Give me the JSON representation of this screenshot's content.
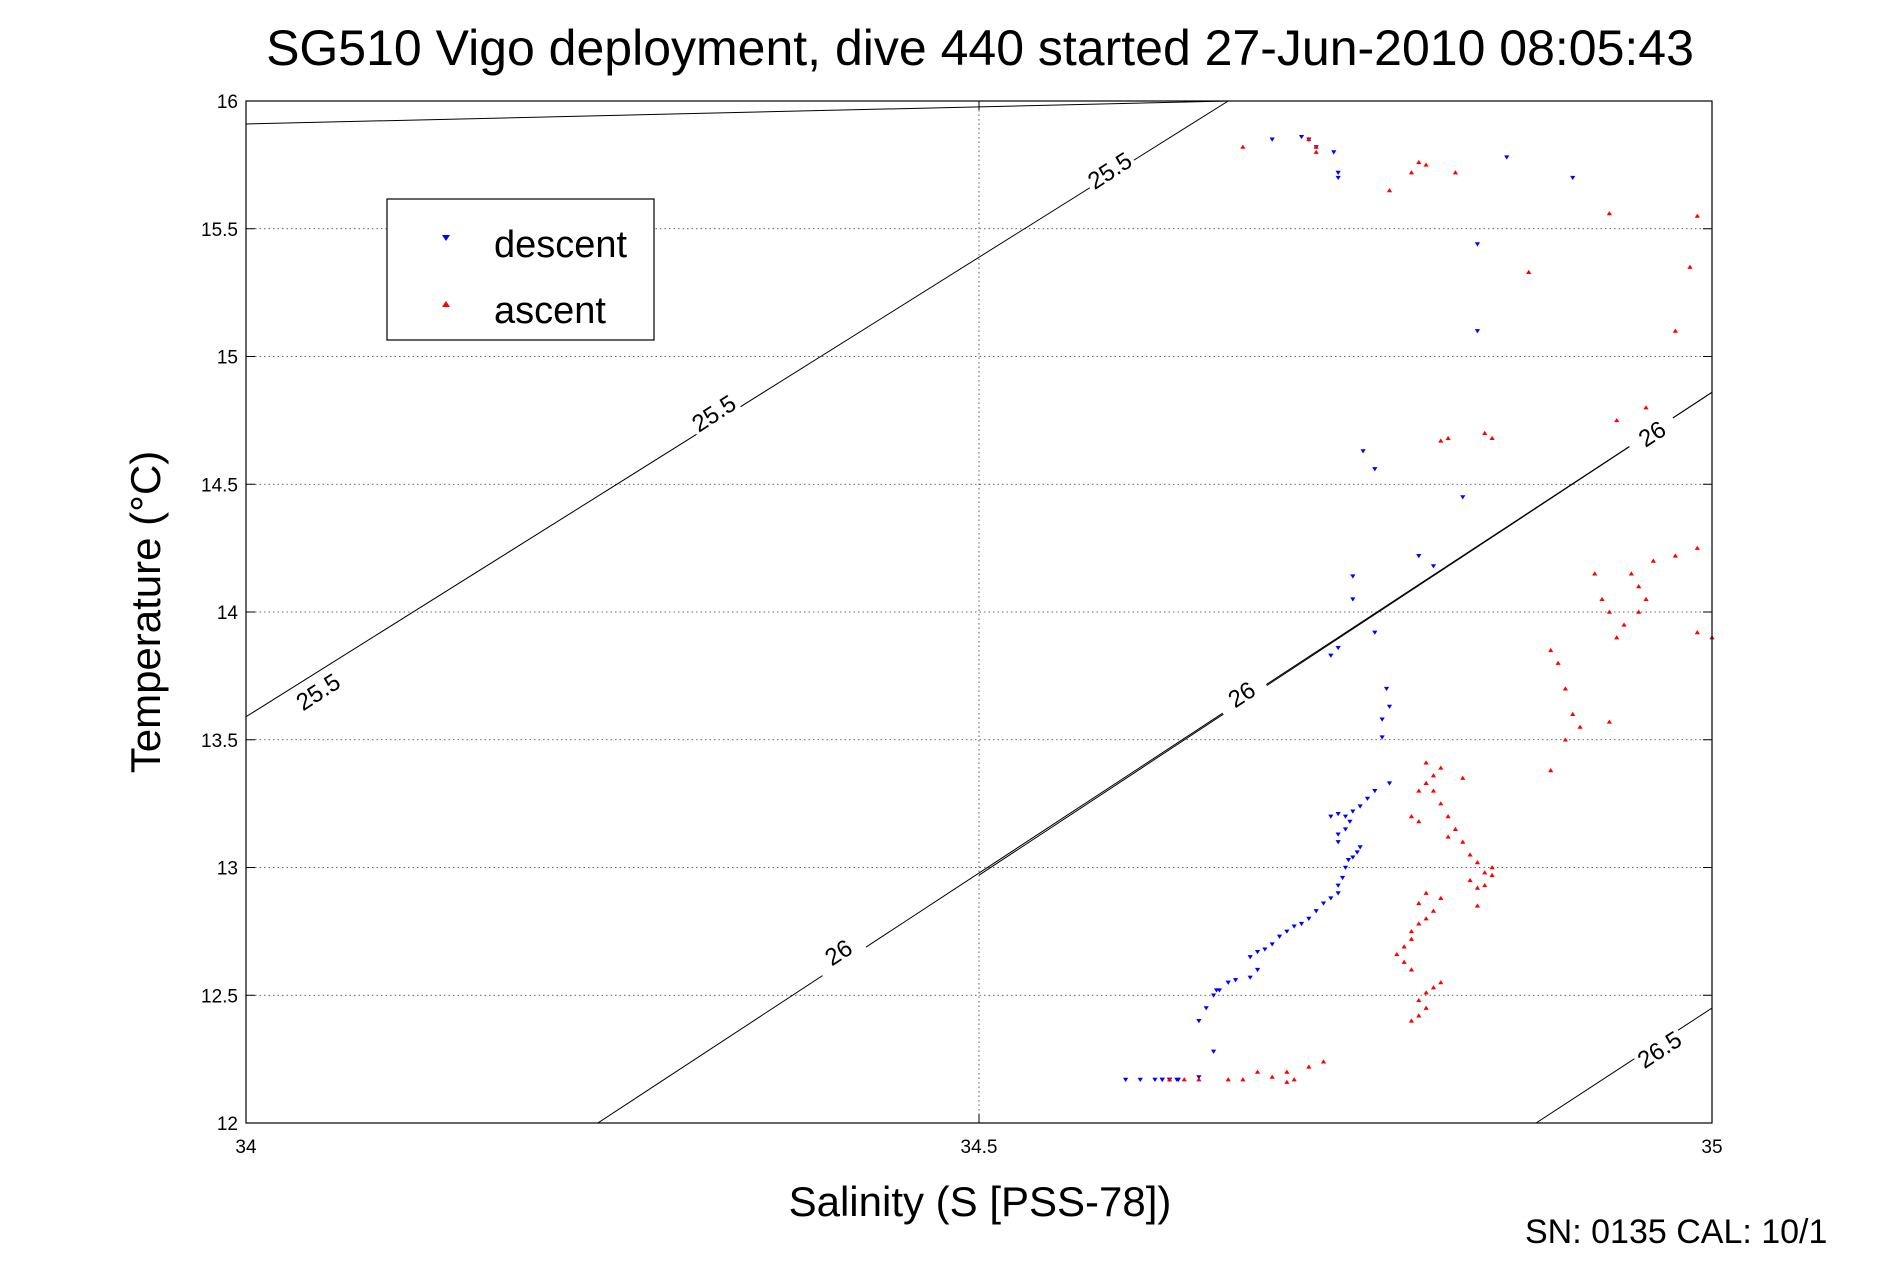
{
  "chart_data": {
    "type": "scatter",
    "title": "SG510 Vigo deployment, dive 440 started 27-Jun-2010 08:05:43",
    "xlabel": "Salinity (S [PSS-78])",
    "ylabel": "Temperature (°C)",
    "xlim": [
      34,
      35
    ],
    "ylim": [
      12,
      16
    ],
    "xticks": [
      "34",
      "34.5",
      "35"
    ],
    "yticks": [
      "12",
      "12.5",
      "13",
      "13.5",
      "14",
      "14.5",
      "15",
      "15.5",
      "16"
    ],
    "grid": true,
    "legend_position": "top-left",
    "footer": "SN: 0135  CAL: 10/1",
    "density_contours": [
      {
        "label": "25.5",
        "line": [
          [
            34.0,
            15.91
          ],
          [
            34.67,
            16.0
          ]
        ],
        "label_at": [
          34.59,
          15.72
        ]
      },
      {
        "label": "25.5",
        "line": [
          [
            34.0,
            13.59
          ],
          [
            34.67,
            16.0
          ]
        ],
        "label_at": [
          34.32,
          14.77
        ]
      },
      {
        "label": "26",
        "line": [
          [
            34.24,
            12.0
          ],
          [
            35.0,
            14.86
          ]
        ],
        "label_at": [
          34.405,
          12.66
        ]
      },
      {
        "label": "26",
        "line": [
          [
            34.5,
            12.97
          ],
          [
            35.0,
            14.86
          ]
        ],
        "label_at": [
          34.68,
          13.67
        ]
      },
      {
        "label": "26",
        "line": [
          [
            34.5,
            12.97
          ],
          [
            35.0,
            14.86
          ]
        ],
        "label_at": [
          34.96,
          14.69
        ]
      },
      {
        "label": "26.5",
        "line": [
          [
            34.88,
            12.0
          ],
          [
            35.0,
            12.45
          ]
        ],
        "label_at": [
          34.965,
          12.28
        ]
      }
    ],
    "contour_labels_extra": [
      {
        "label": "25.5",
        "label_at": [
          34.05,
          13.68
        ]
      }
    ],
    "series": [
      {
        "name": "descent",
        "color": "#0000ff",
        "marker": "triangle-down",
        "points": [
          [
            34.62,
            12.17
          ],
          [
            34.6,
            12.17
          ],
          [
            34.61,
            12.17
          ],
          [
            34.625,
            12.17
          ],
          [
            34.63,
            12.17
          ],
          [
            34.635,
            12.17
          ],
          [
            34.625,
            12.17
          ],
          [
            34.63,
            12.17
          ],
          [
            34.636,
            12.17
          ],
          [
            34.65,
            12.18
          ],
          [
            34.66,
            12.28
          ],
          [
            34.65,
            12.4
          ],
          [
            34.655,
            12.45
          ],
          [
            34.66,
            12.5
          ],
          [
            34.662,
            12.52
          ],
          [
            34.664,
            12.52
          ],
          [
            34.67,
            12.55
          ],
          [
            34.675,
            12.56
          ],
          [
            34.685,
            12.57
          ],
          [
            34.69,
            12.6
          ],
          [
            34.685,
            12.65
          ],
          [
            34.69,
            12.67
          ],
          [
            34.695,
            12.68
          ],
          [
            34.7,
            12.7
          ],
          [
            34.705,
            12.73
          ],
          [
            34.71,
            12.75
          ],
          [
            34.715,
            12.77
          ],
          [
            34.72,
            12.78
          ],
          [
            34.725,
            12.8
          ],
          [
            34.73,
            12.83
          ],
          [
            34.735,
            12.86
          ],
          [
            34.74,
            12.88
          ],
          [
            34.745,
            12.9
          ],
          [
            34.745,
            12.93
          ],
          [
            34.748,
            12.96
          ],
          [
            34.75,
            13.0
          ],
          [
            34.752,
            13.03
          ],
          [
            34.755,
            13.04
          ],
          [
            34.758,
            13.06
          ],
          [
            34.76,
            13.08
          ],
          [
            34.745,
            13.1
          ],
          [
            34.745,
            13.13
          ],
          [
            34.75,
            13.15
          ],
          [
            34.753,
            13.18
          ],
          [
            34.75,
            13.2
          ],
          [
            34.755,
            13.22
          ],
          [
            34.76,
            13.24
          ],
          [
            34.765,
            13.27
          ],
          [
            34.77,
            13.3
          ],
          [
            34.78,
            13.33
          ],
          [
            34.74,
            13.2
          ],
          [
            34.745,
            13.21
          ],
          [
            34.775,
            13.51
          ],
          [
            34.775,
            13.58
          ],
          [
            34.78,
            13.63
          ],
          [
            34.778,
            13.7
          ],
          [
            34.74,
            13.83
          ],
          [
            34.745,
            13.86
          ],
          [
            34.77,
            13.92
          ],
          [
            34.755,
            14.05
          ],
          [
            34.755,
            14.14
          ],
          [
            34.762,
            14.63
          ],
          [
            34.77,
            14.56
          ],
          [
            34.8,
            14.22
          ],
          [
            34.81,
            14.18
          ],
          [
            34.83,
            14.45
          ],
          [
            34.84,
            15.1
          ],
          [
            34.84,
            15.44
          ],
          [
            34.86,
            15.78
          ],
          [
            34.905,
            15.7
          ],
          [
            34.745,
            15.7
          ],
          [
            34.745,
            15.72
          ],
          [
            34.742,
            15.8
          ],
          [
            34.73,
            15.82
          ],
          [
            34.725,
            15.85
          ],
          [
            34.72,
            15.86
          ],
          [
            34.7,
            15.85
          ]
        ]
      },
      {
        "name": "ascent",
        "color": "#ff0000",
        "marker": "triangle-up",
        "points": [
          [
            34.65,
            12.17
          ],
          [
            34.63,
            12.17
          ],
          [
            34.64,
            12.17
          ],
          [
            34.67,
            12.17
          ],
          [
            34.68,
            12.17
          ],
          [
            34.69,
            12.2
          ],
          [
            34.7,
            12.18
          ],
          [
            34.71,
            12.16
          ],
          [
            34.715,
            12.17
          ],
          [
            34.725,
            12.22
          ],
          [
            34.71,
            12.2
          ],
          [
            34.735,
            12.24
          ],
          [
            34.795,
            12.4
          ],
          [
            34.8,
            12.42
          ],
          [
            34.805,
            12.45
          ],
          [
            34.8,
            12.48
          ],
          [
            34.805,
            12.51
          ],
          [
            34.81,
            12.53
          ],
          [
            34.815,
            12.55
          ],
          [
            34.795,
            12.6
          ],
          [
            34.79,
            12.63
          ],
          [
            34.785,
            12.66
          ],
          [
            34.79,
            12.69
          ],
          [
            34.795,
            12.72
          ],
          [
            34.795,
            12.75
          ],
          [
            34.8,
            12.78
          ],
          [
            34.805,
            12.8
          ],
          [
            34.81,
            12.83
          ],
          [
            34.8,
            12.86
          ],
          [
            34.805,
            12.9
          ],
          [
            34.815,
            12.88
          ],
          [
            34.84,
            12.92
          ],
          [
            34.835,
            12.95
          ],
          [
            34.845,
            12.98
          ],
          [
            34.85,
            13.0
          ],
          [
            34.84,
            13.02
          ],
          [
            34.835,
            13.05
          ],
          [
            34.83,
            13.1
          ],
          [
            34.825,
            13.15
          ],
          [
            34.82,
            13.2
          ],
          [
            34.815,
            13.25
          ],
          [
            34.81,
            13.3
          ],
          [
            34.805,
            13.33
          ],
          [
            34.81,
            13.36
          ],
          [
            34.815,
            13.39
          ],
          [
            34.805,
            13.41
          ],
          [
            34.8,
            13.3
          ],
          [
            34.795,
            13.2
          ],
          [
            34.8,
            13.18
          ],
          [
            34.82,
            13.12
          ],
          [
            34.83,
            13.35
          ],
          [
            34.85,
            12.97
          ],
          [
            34.845,
            12.93
          ],
          [
            34.84,
            12.85
          ],
          [
            34.89,
            13.38
          ],
          [
            34.9,
            13.5
          ],
          [
            34.91,
            13.55
          ],
          [
            34.93,
            13.57
          ],
          [
            34.905,
            13.6
          ],
          [
            34.9,
            13.7
          ],
          [
            34.895,
            13.8
          ],
          [
            34.89,
            13.85
          ],
          [
            34.935,
            13.9
          ],
          [
            34.94,
            13.95
          ],
          [
            34.95,
            14.0
          ],
          [
            34.955,
            14.05
          ],
          [
            34.95,
            14.1
          ],
          [
            34.945,
            14.15
          ],
          [
            34.96,
            14.2
          ],
          [
            34.975,
            14.22
          ],
          [
            34.99,
            14.25
          ],
          [
            35.0,
            13.9
          ],
          [
            34.99,
            13.92
          ],
          [
            34.925,
            14.05
          ],
          [
            34.93,
            14.0
          ],
          [
            34.92,
            14.15
          ],
          [
            34.935,
            14.75
          ],
          [
            34.955,
            14.8
          ],
          [
            34.975,
            15.1
          ],
          [
            34.99,
            15.55
          ],
          [
            34.985,
            15.35
          ],
          [
            34.93,
            15.56
          ],
          [
            34.875,
            15.33
          ],
          [
            34.845,
            14.7
          ],
          [
            34.85,
            14.68
          ],
          [
            34.815,
            14.67
          ],
          [
            34.82,
            14.68
          ],
          [
            34.8,
            15.76
          ],
          [
            34.805,
            15.75
          ],
          [
            34.795,
            15.72
          ],
          [
            34.78,
            15.65
          ],
          [
            34.73,
            15.82
          ],
          [
            34.73,
            15.8
          ],
          [
            34.725,
            15.85
          ],
          [
            34.68,
            15.82
          ],
          [
            34.825,
            15.72
          ]
        ]
      }
    ]
  }
}
